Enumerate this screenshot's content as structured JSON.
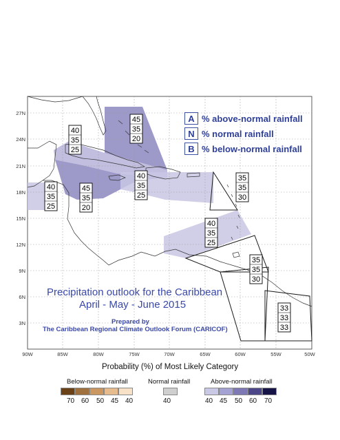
{
  "map": {
    "lat_labels": [
      "27N",
      "24N",
      "21N",
      "18N",
      "15N",
      "12N",
      "9N",
      "6N",
      "3N"
    ],
    "lon_labels": [
      "90W",
      "85W",
      "80W",
      "75W",
      "70W",
      "65W",
      "60W",
      "55W",
      "50W"
    ],
    "zones": [
      {
        "A": "45",
        "N": "35",
        "B": "20"
      },
      {
        "A": "40",
        "N": "35",
        "B": "25"
      },
      {
        "A": "40",
        "N": "35",
        "B": "25"
      },
      {
        "A": "45",
        "N": "35",
        "B": "20"
      },
      {
        "A": "40",
        "N": "35",
        "B": "25"
      },
      {
        "A": "35",
        "N": "35",
        "B": "30"
      },
      {
        "A": "40",
        "N": "35",
        "B": "25"
      },
      {
        "A": "35",
        "N": "35",
        "B": "30"
      },
      {
        "A": "33",
        "N": "33",
        "B": "33"
      }
    ]
  },
  "key": {
    "a_letter": "A",
    "a_text": "% above-normal rainfall",
    "n_letter": "N",
    "n_text": "% normal rainfall",
    "b_letter": "B",
    "b_text": "% below-normal rainfall"
  },
  "title": {
    "line1": "Precipitation outlook for the Caribbean",
    "line2": "April - May - June 2015",
    "prepared_by": "Prepared by",
    "forum": "The Caribbean Regional Climate Outlook Forum (CARICOF)"
  },
  "colorbar": {
    "title": "Probability (%) of Most Likely Category",
    "below_label": "Below-normal rainfall",
    "normal_label": "Normal rainfall",
    "above_label": "Above-normal rainfall",
    "below_ticks": [
      "70",
      "60",
      "50",
      "45",
      "40"
    ],
    "normal_ticks": [
      "40"
    ],
    "above_ticks": [
      "40",
      "45",
      "50",
      "60",
      "70"
    ],
    "below_colors": [
      "#6b4218",
      "#a0703f",
      "#c9975f",
      "#e6bb8e",
      "#f7e2c8"
    ],
    "normal_colors": [
      "#cfcfcf"
    ],
    "above_colors": [
      "#c9c9e6",
      "#a4a2d2",
      "#7e78b4",
      "#4b4789",
      "#161446"
    ]
  }
}
